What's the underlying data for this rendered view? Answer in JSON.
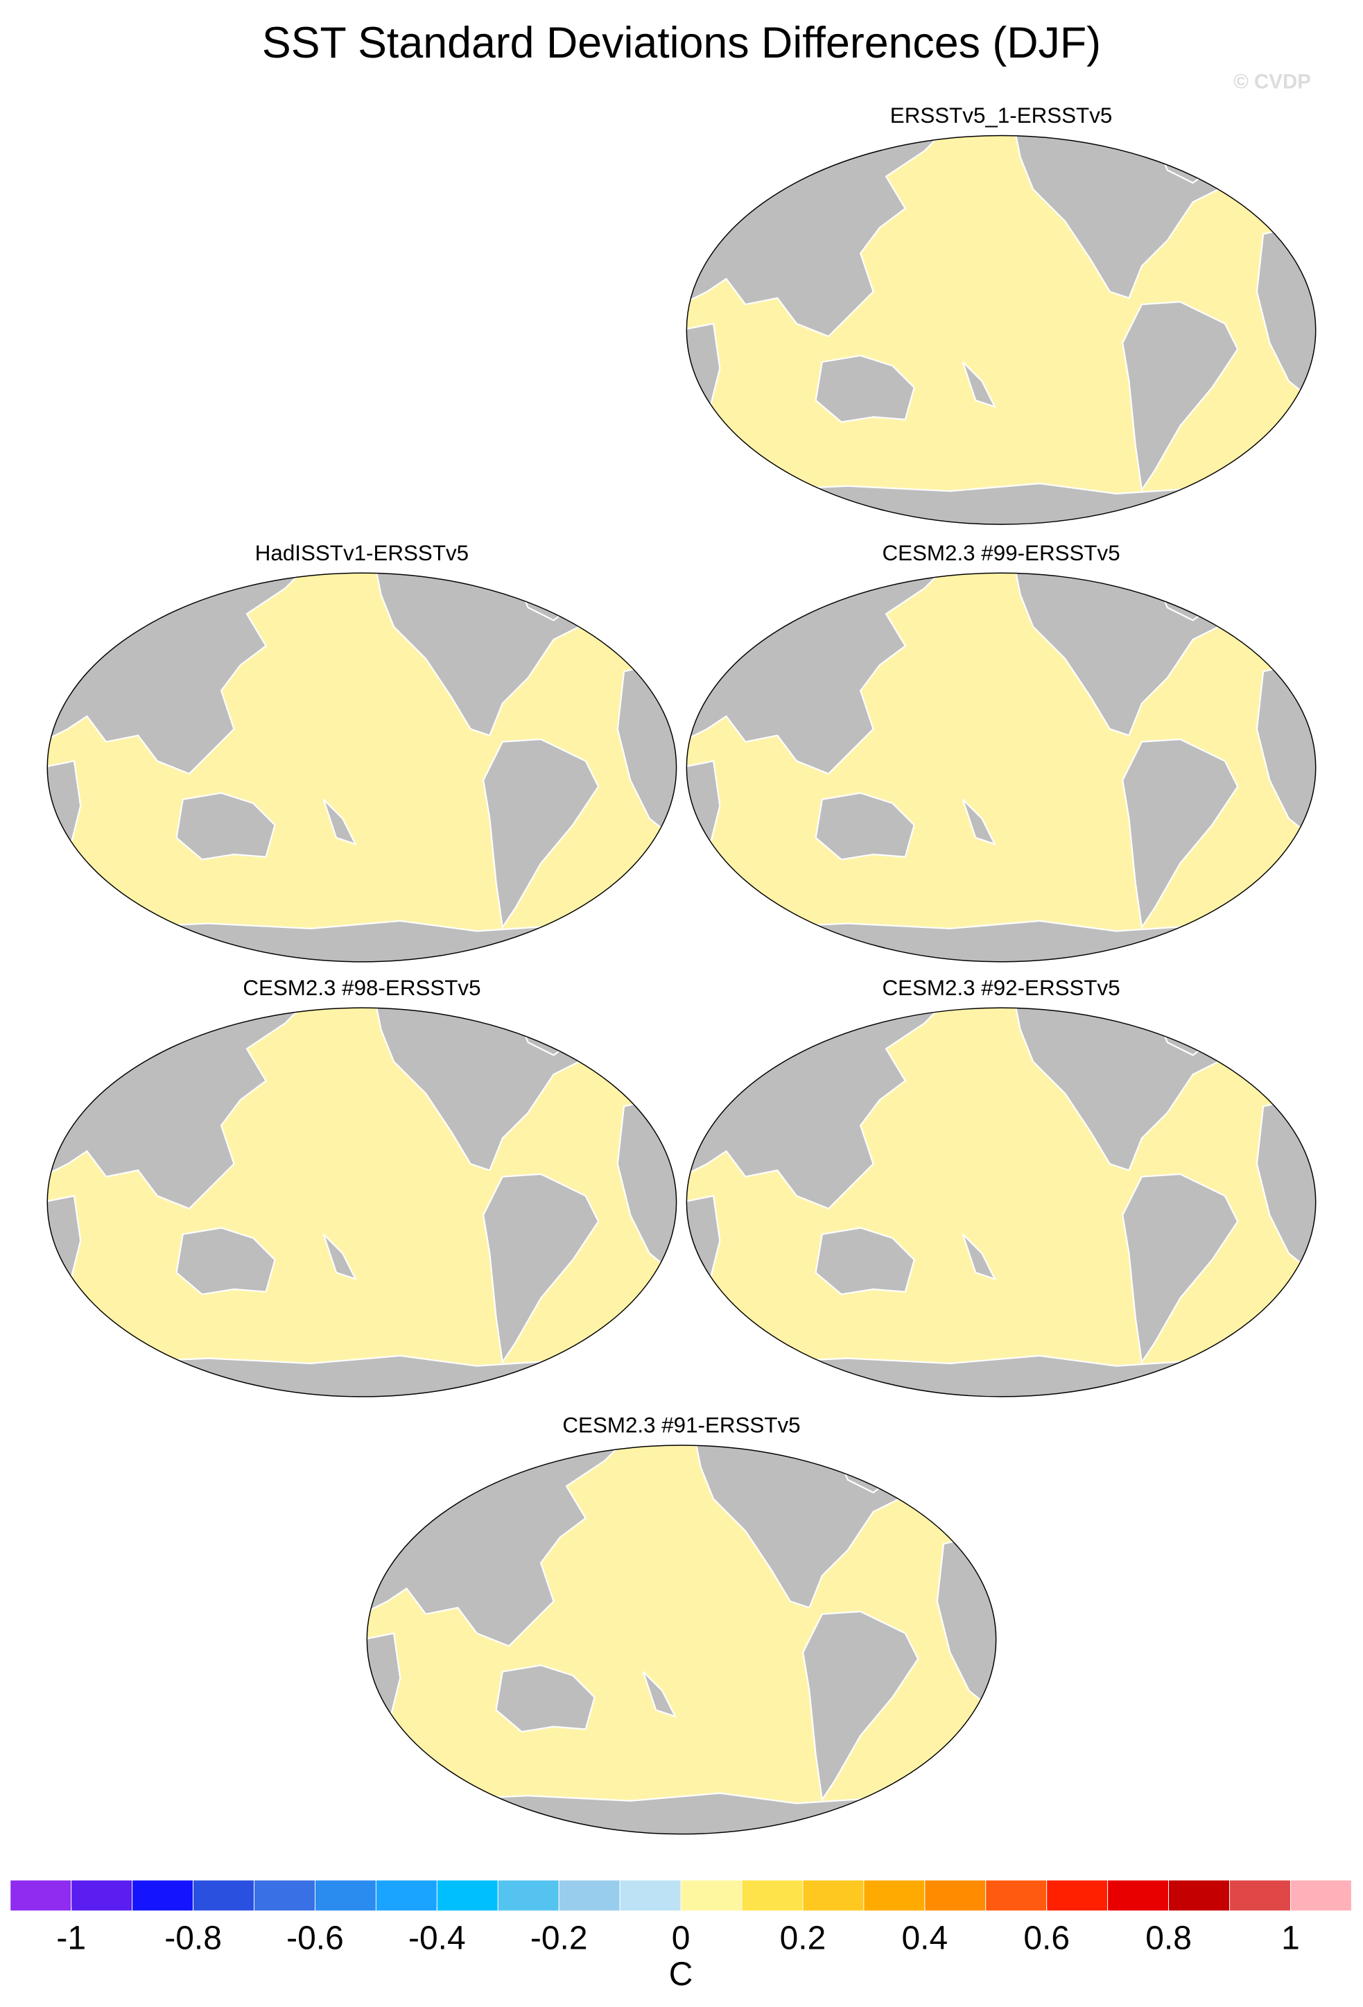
{
  "title": "SST Standard Deviations Differences (DJF)",
  "watermark": "© CVDP",
  "panels": [
    {
      "title": "ERSSTv5_1-ERSSTv5"
    },
    {
      "title": "HadISSTv1-ERSSTv5"
    },
    {
      "title": "CESM2.3 #99-ERSSTv5"
    },
    {
      "title": "CESM2.3 #98-ERSSTv5"
    },
    {
      "title": "CESM2.3 #92-ERSSTv5"
    },
    {
      "title": "CESM2.3 #91-ERSSTv5"
    }
  ],
  "colorbar": {
    "range": [
      -1.1,
      1.1
    ],
    "colors": [
      "#8f2cf0",
      "#5a1ef0",
      "#1414ff",
      "#2a50e0",
      "#3a70e6",
      "#2b8cf0",
      "#1aa3ff",
      "#00bfff",
      "#55c3f0",
      "#99cdee",
      "#bde2f5",
      "#fff6a0",
      "#ffe34a",
      "#ffc820",
      "#ffaa00",
      "#ff8c00",
      "#ff5a10",
      "#ff2000",
      "#e80000",
      "#c40000",
      "#e04848",
      "#ffb0b8"
    ],
    "ticks": [
      -1,
      -0.8,
      -0.6,
      -0.4,
      -0.2,
      0,
      0.2,
      0.4,
      0.6,
      0.8,
      1
    ],
    "label": "C"
  }
}
